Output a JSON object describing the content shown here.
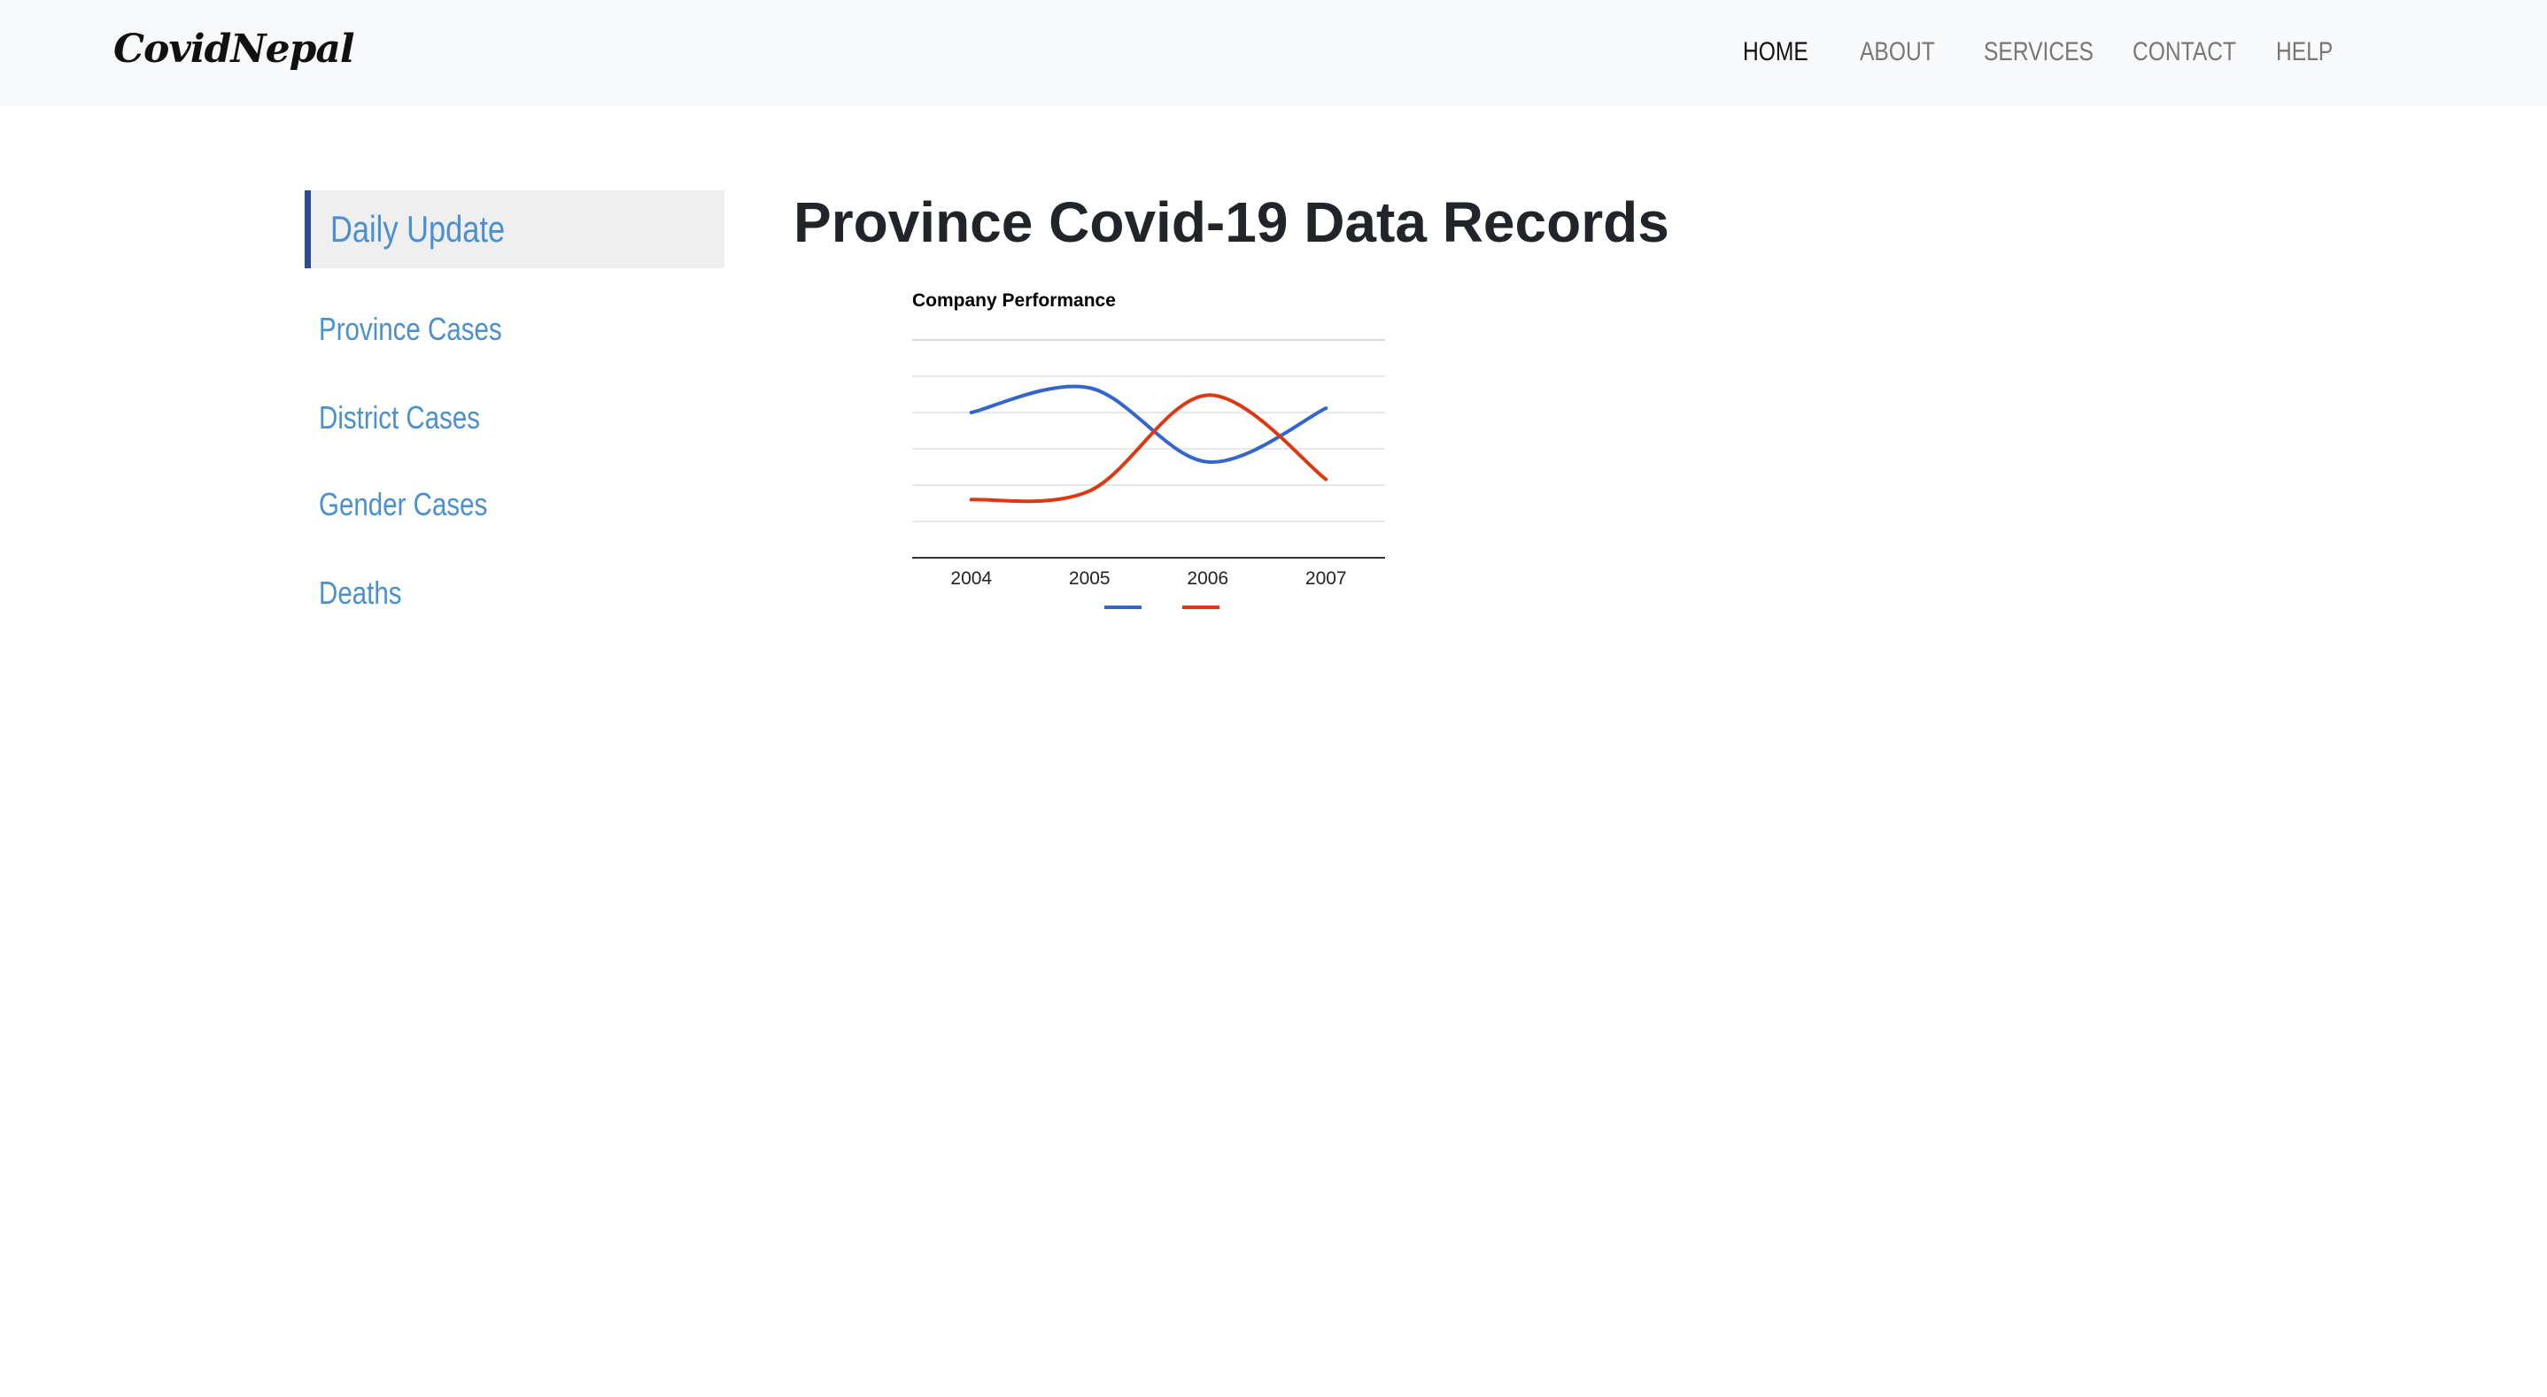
{
  "brand": "CovidNepal",
  "nav": [
    {
      "label": "HOME",
      "active": true
    },
    {
      "label": "ABOUT",
      "active": false
    },
    {
      "label": "SERVICES",
      "active": false
    },
    {
      "label": "CONTACT",
      "active": false
    },
    {
      "label": "HELP",
      "active": false
    }
  ],
  "sidebar": {
    "active": "Daily Update",
    "items": [
      "Province Cases",
      "District Cases",
      "Gender Cases",
      "Deaths"
    ]
  },
  "page_title": "Province Covid-19 Data Records",
  "colors": {
    "series1": "#3366cc",
    "series2": "#dc3912",
    "link": "#4a8fd0",
    "sidebar_accent": "#2a4d8f"
  },
  "chart_data": {
    "type": "line",
    "title": "Company Performance",
    "categories": [
      "2004",
      "2005",
      "2006",
      "2007"
    ],
    "series": [
      {
        "values": [
          1000,
          1170,
          660,
          1030
        ]
      },
      {
        "values": [
          400,
          460,
          1120,
          540
        ]
      }
    ],
    "ylim": [
      0,
      1500
    ],
    "grid": true,
    "legend": "bottom",
    "curve": "smooth"
  }
}
